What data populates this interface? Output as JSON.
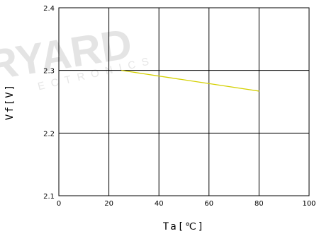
{
  "watermark": {
    "brand": "RYARD",
    "sub": "ECTRONICS"
  },
  "chart_data": {
    "type": "line",
    "xlabel": "Ta[℃]",
    "ylabel": "Vf[V]",
    "xlim": [
      0,
      100
    ],
    "ylim": [
      2.1,
      2.4
    ],
    "xticks": [
      0,
      20,
      40,
      60,
      80,
      100
    ],
    "yticks": [
      2.1,
      2.2,
      2.3,
      2.4
    ],
    "xtick_labels": [
      "0",
      "20",
      "40",
      "60",
      "80",
      "100"
    ],
    "ytick_labels": [
      "2.1",
      "2.2",
      "2.3",
      "2.4"
    ],
    "grid": true,
    "series": [
      {
        "color": "#d4d000",
        "x": [
          25,
          80
        ],
        "y": [
          2.3,
          2.267
        ]
      }
    ]
  }
}
